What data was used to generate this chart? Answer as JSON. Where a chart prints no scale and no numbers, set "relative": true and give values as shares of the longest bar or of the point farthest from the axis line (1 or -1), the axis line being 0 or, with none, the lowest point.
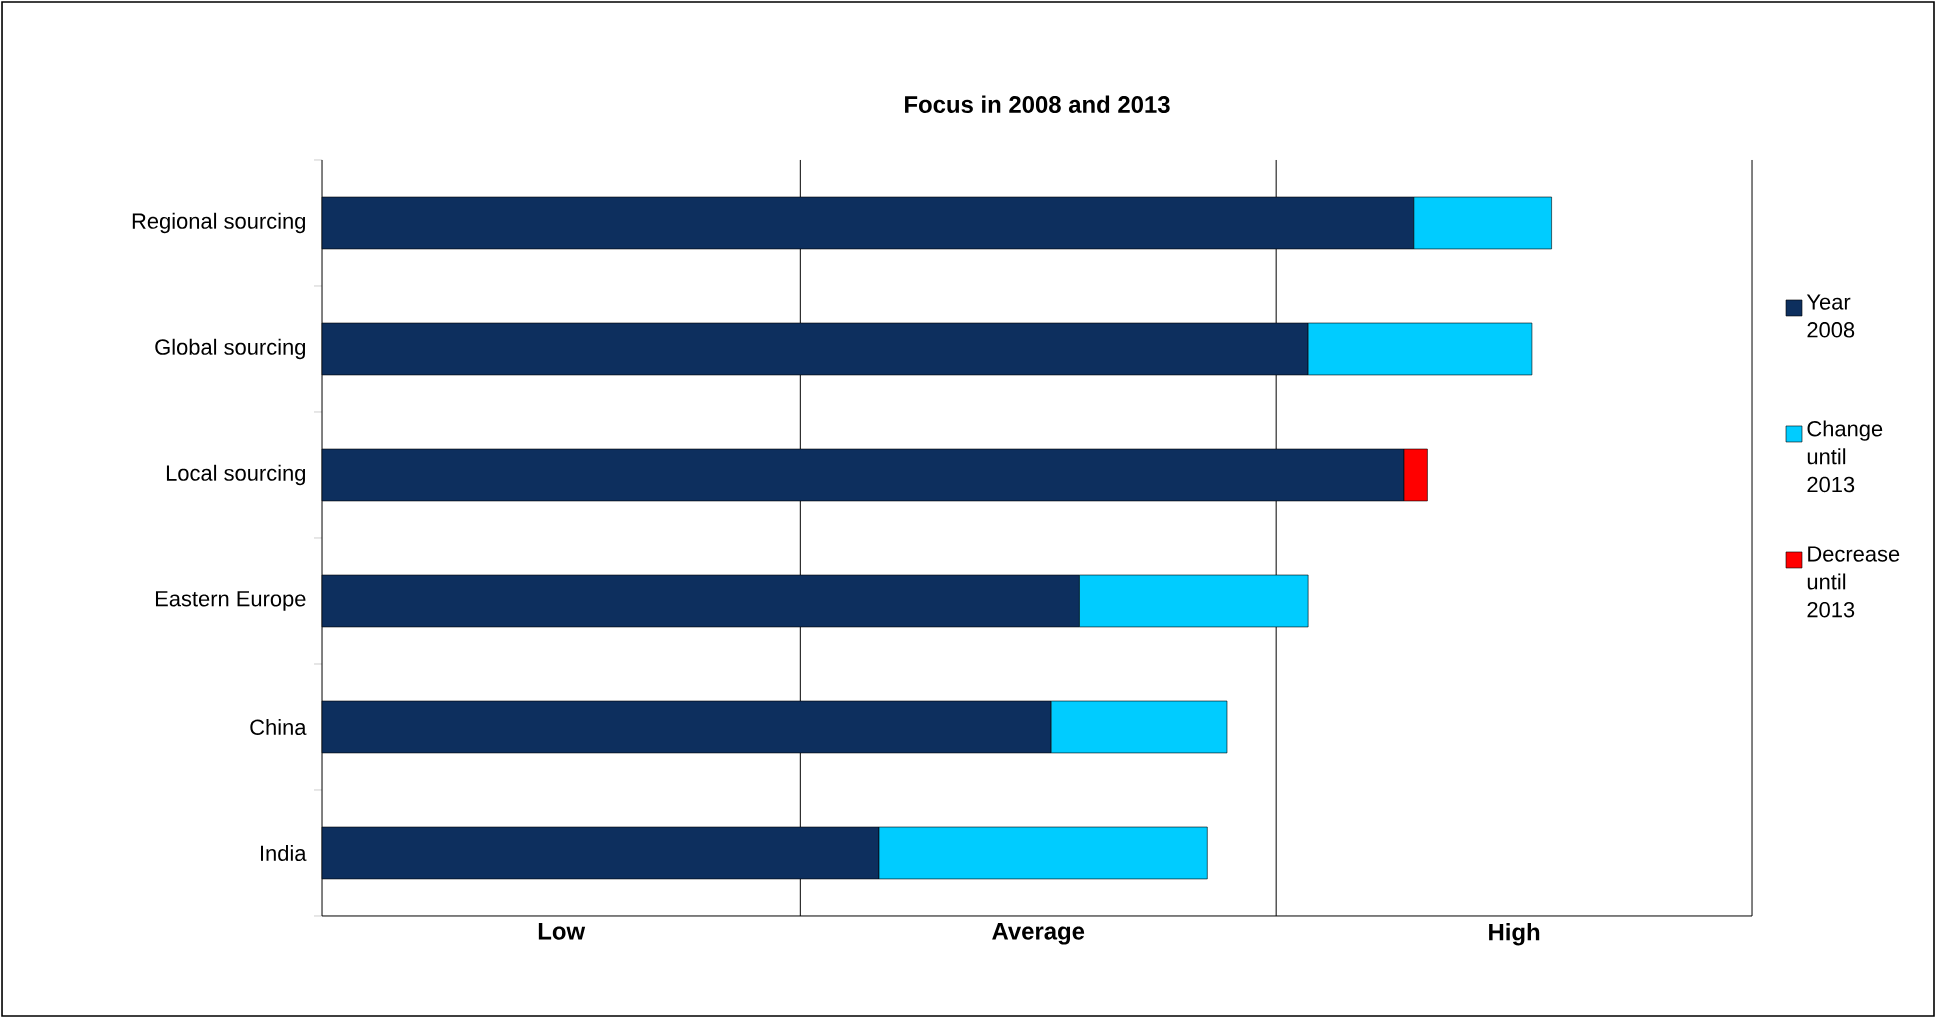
{
  "chart_data": {
    "type": "bar",
    "orientation": "horizontal",
    "stacked": true,
    "relative": true,
    "title": "Focus in 2008 and 2013",
    "categories": [
      "Regional sourcing",
      "Global sourcing",
      "Local sourcing",
      "Eastern Europe",
      "China",
      "India"
    ],
    "series": [
      {
        "name": "Year 2008",
        "color": "#0d2f5e",
        "values": [
          0.888,
          0.802,
          0.88,
          0.616,
          0.593,
          0.453
        ]
      },
      {
        "name": "Change until 2013",
        "color": "#00ccff",
        "values": [
          0.112,
          0.182,
          null,
          0.186,
          0.143,
          0.267
        ]
      },
      {
        "name": "Decrease until 2013",
        "color": "#ff0000",
        "values": [
          null,
          null,
          0.019,
          null,
          null,
          null
        ]
      }
    ],
    "ref_lines": [
      {
        "axis": "x",
        "value": 0.389
      },
      {
        "axis": "x",
        "value": 0.776
      },
      {
        "axis": "x",
        "value": 1.163
      }
    ],
    "annotations": [
      "Low",
      "Average",
      "High"
    ],
    "legend": "right"
  }
}
